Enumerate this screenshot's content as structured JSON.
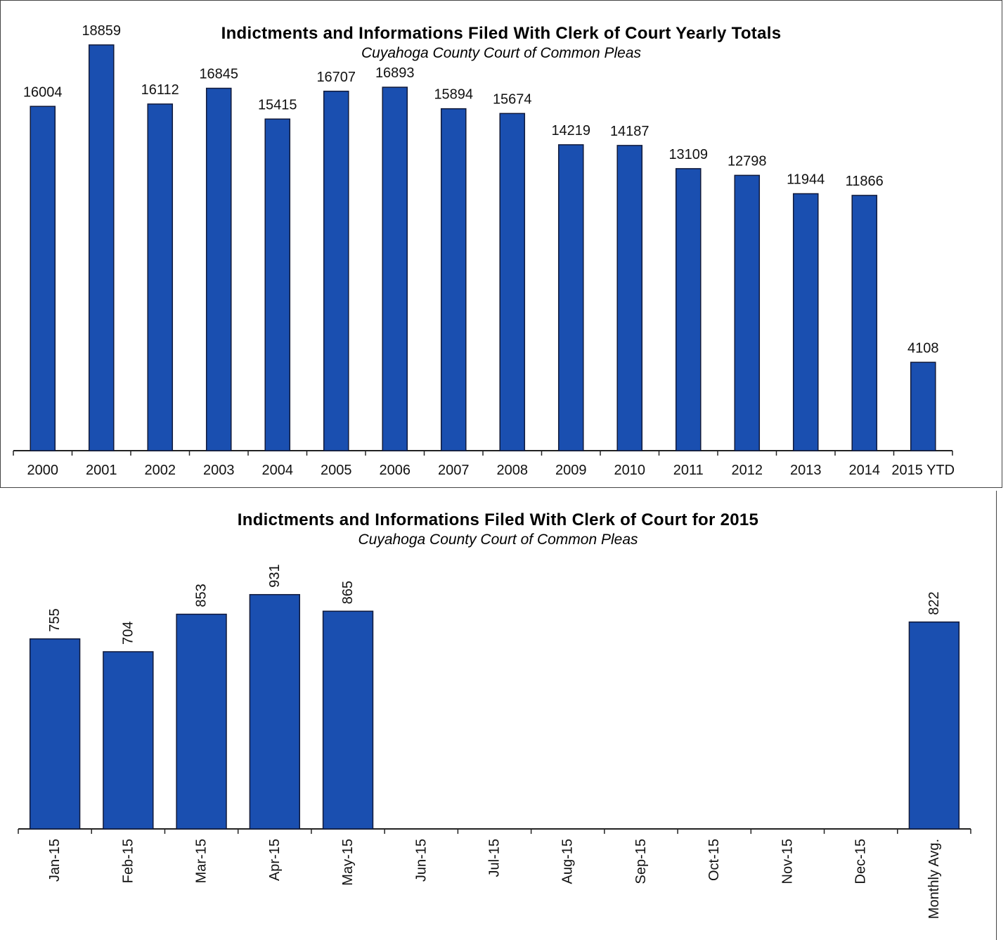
{
  "chart_data": [
    {
      "type": "bar",
      "title": "Indictments and Informations Filed With Clerk of Court Yearly Totals",
      "subtitle": "Cuyahoga County Court of Common Pleas",
      "categories": [
        "2000",
        "2001",
        "2002",
        "2003",
        "2004",
        "2005",
        "2006",
        "2007",
        "2008",
        "2009",
        "2010",
        "2011",
        "2012",
        "2013",
        "2014",
        "2015 YTD"
      ],
      "values": [
        16004,
        18859,
        16112,
        16845,
        15415,
        16707,
        16893,
        15894,
        15674,
        14219,
        14187,
        13109,
        12798,
        11944,
        11866,
        4108
      ],
      "ylim": [
        0,
        20000
      ],
      "grid": false,
      "data_labels": true,
      "bar_color": "#1a4fb0"
    },
    {
      "type": "bar",
      "title": "Indictments and Informations Filed With Clerk of Court for 2015",
      "subtitle": "Cuyahoga County Court of Common Pleas",
      "categories": [
        "Jan-15",
        "Feb-15",
        "Mar-15",
        "Apr-15",
        "May-15",
        "Jun-15",
        "Jul-15",
        "Aug-15",
        "Sep-15",
        "Oct-15",
        "Nov-15",
        "Dec-15",
        "Monthly Avg."
      ],
      "values": [
        755,
        704,
        853,
        931,
        865,
        null,
        null,
        null,
        null,
        null,
        null,
        null,
        822
      ],
      "ylim": [
        0,
        1000
      ],
      "grid": false,
      "data_labels": true,
      "bar_color": "#1a4fb0"
    }
  ]
}
